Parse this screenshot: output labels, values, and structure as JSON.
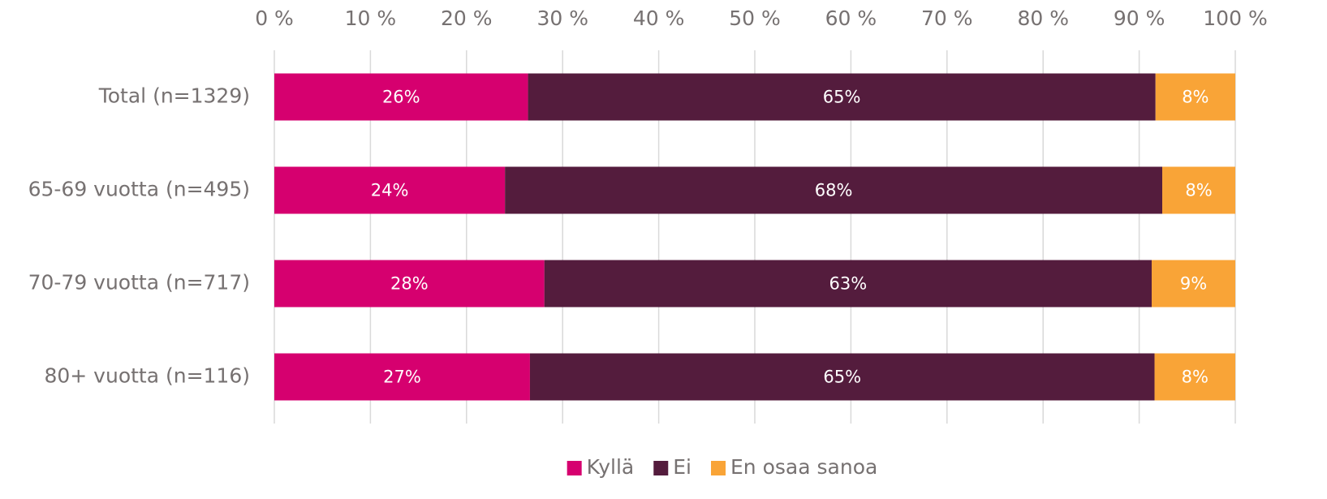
{
  "chart_data": {
    "type": "stacked_barh",
    "categories": [
      "Total (n=1329)",
      "65-69 vuotta (n=495)",
      "70-79 vuotta (n=717)",
      "80+ vuotta (n=116)"
    ],
    "series": [
      {
        "name": "Kyllä",
        "color": "#d6006f",
        "values": [
          26.4,
          24.0,
          28.1,
          26.6
        ],
        "value_labels": [
          "26%",
          "24%",
          "28%",
          "27%"
        ]
      },
      {
        "name": "Ei",
        "color": "#541c3d",
        "values": [
          65.3,
          68.4,
          63.2,
          65.0
        ],
        "value_labels": [
          "65%",
          "68%",
          "63%",
          "65%"
        ]
      },
      {
        "name": "En osaa sanoa",
        "color": "#f9a437",
        "values": [
          8.3,
          7.6,
          8.7,
          8.4
        ],
        "value_labels": [
          "8%",
          "8%",
          "9%",
          "8%"
        ]
      }
    ],
    "xlim": [
      0,
      100
    ],
    "xticks": [
      {
        "value": 0,
        "label": "0 %"
      },
      {
        "value": 10,
        "label": "10 %"
      },
      {
        "value": 20,
        "label": "20 %"
      },
      {
        "value": 30,
        "label": "30 %"
      },
      {
        "value": 40,
        "label": "40 %"
      },
      {
        "value": 50,
        "label": "50 %"
      },
      {
        "value": 60,
        "label": "60 %"
      },
      {
        "value": 70,
        "label": "70 %"
      },
      {
        "value": 80,
        "label": "80 %"
      },
      {
        "value": 90,
        "label": "90 %"
      },
      {
        "value": 100,
        "label": "100 %"
      }
    ],
    "grid": true,
    "legend": "bottom"
  }
}
